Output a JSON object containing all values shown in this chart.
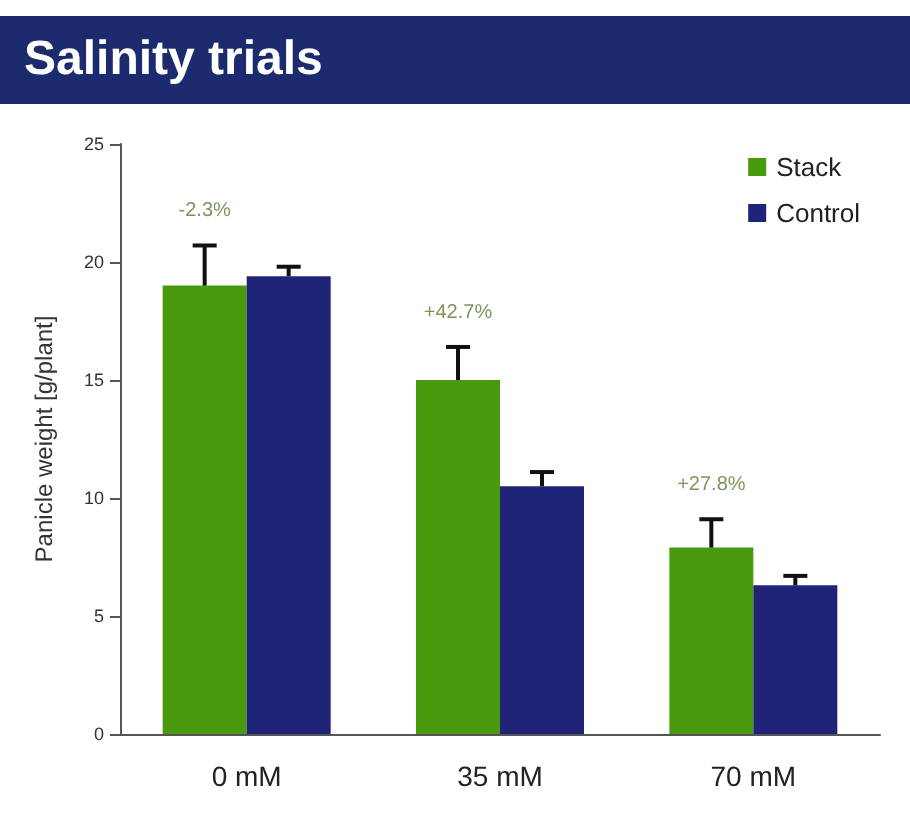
{
  "chart_data": {
    "type": "bar",
    "title": "Salinity trials",
    "ylabel": "Panicle weight [g/plant]",
    "categories": [
      "0 mM",
      "35 mM",
      "70 mM"
    ],
    "series": [
      {
        "name": "Stack",
        "color": "#4a9a10",
        "values": [
          19,
          15,
          7.9
        ],
        "errors": [
          [
            19,
            20.7
          ],
          [
            15,
            16.4
          ],
          [
            7.9,
            9.1
          ]
        ]
      },
      {
        "name": "Control",
        "color": "#1f2478",
        "values": [
          19.4,
          10.5,
          6.3
        ],
        "errors": [
          [
            19.4,
            19.8
          ],
          [
            10.5,
            11.1
          ],
          [
            6.3,
            6.7
          ]
        ]
      }
    ],
    "ylim": [
      0,
      25
    ],
    "yticks": [
      0,
      5,
      10,
      15,
      20,
      25
    ],
    "grid": false,
    "legend": "top right",
    "annotations": [
      "-2.3%",
      "+42.7%",
      "+27.8%"
    ]
  }
}
